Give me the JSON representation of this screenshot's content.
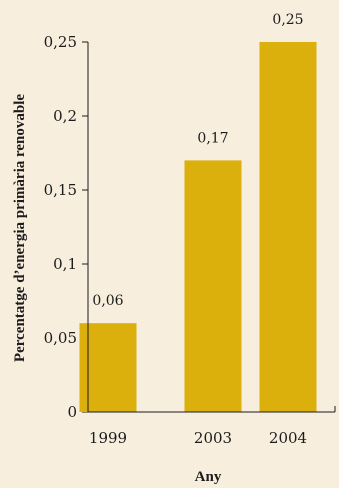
{
  "chart_data": {
    "type": "bar",
    "categories": [
      "1999",
      "2003",
      "2004"
    ],
    "values": [
      0.06,
      0.17,
      0.25
    ],
    "data_labels": [
      "0,06",
      "0,17",
      "0,25"
    ],
    "title": "",
    "xlabel": "Any",
    "ylabel": "Percentatge d’energia primària renovable",
    "ylim": [
      0,
      0.25
    ],
    "yticks": [
      {
        "value": 0,
        "label": "0"
      },
      {
        "value": 0.05,
        "label": "0,05"
      },
      {
        "value": 0.1,
        "label": "0,1"
      },
      {
        "value": 0.15,
        "label": "0,15"
      },
      {
        "value": 0.2,
        "label": "0,2"
      },
      {
        "value": 0.25,
        "label": "0,25"
      }
    ],
    "grid": false,
    "bar_color": "#dbb00c",
    "background_color": "#f7eedd"
  }
}
